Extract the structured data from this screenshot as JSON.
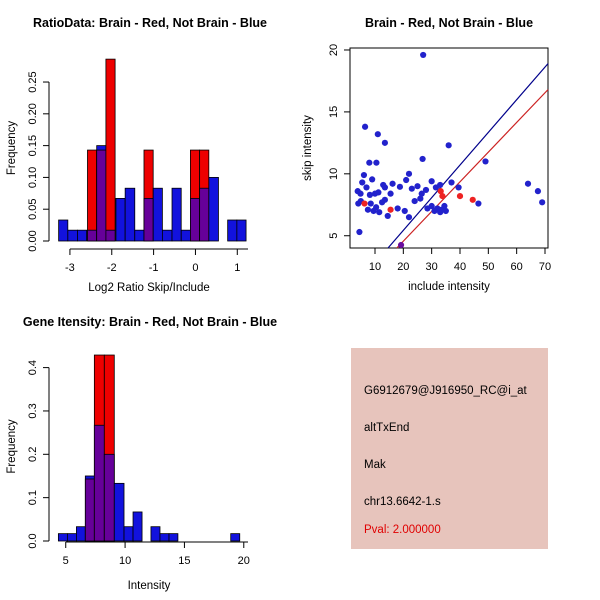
{
  "figure": {
    "background": "#ffffff",
    "description": "R graphics 2x2 panel: two overlaid histograms, one scatter plot, one gene info card"
  },
  "colors": {
    "hist_blue": "#1212DD",
    "hist_red": "#EE0000",
    "hist_overlap": "#660099",
    "point_blue": "#2222CC",
    "point_red": "#EE2222",
    "point_purple": "#6A0D9E",
    "line_blue": "#00008B",
    "line_red": "#CC2222",
    "axis": "#000000",
    "info_bg": "#E7C4BC",
    "pval_red": "#E00000"
  },
  "chart_data": [
    {
      "id": "ratio-histogram",
      "type": "bar",
      "subtype": "overlaid-histograms",
      "title": "RatioData: Brain - Red, Not Brain - Blue",
      "xlabel": "Log2 Ratio Skip/Include",
      "ylabel": "Frequency",
      "xlim": [
        -3.5,
        1.28
      ],
      "ylim": [
        0,
        0.2925
      ],
      "xticks": [
        -3,
        -2,
        -1,
        0,
        1
      ],
      "xtick_labels": [
        "-3",
        "-2",
        "-1",
        "0",
        "1"
      ],
      "yticks": [
        0,
        0.05,
        0.1,
        0.15,
        0.2,
        0.25
      ],
      "ytick_labels": [
        "0.00",
        "0.05",
        "0.10",
        "0.15",
        "0.20",
        "0.25"
      ],
      "legend_note": "Brain - Red, Not Brain - Blue, overlap - purple",
      "bars": [
        {
          "x0": -3.27,
          "x1": -3.05,
          "blue": 0.033,
          "red": 0
        },
        {
          "x0": -3.05,
          "x1": -2.82,
          "blue": 0.017,
          "red": 0
        },
        {
          "x0": -2.82,
          "x1": -2.6,
          "blue": 0.017,
          "red": 0
        },
        {
          "x0": -2.58,
          "x1": -2.36,
          "blue": 0.017,
          "red": 0.143
        },
        {
          "x0": -2.36,
          "x1": -2.14,
          "blue": 0.15,
          "red": 0.143
        },
        {
          "x0": -2.14,
          "x1": -1.92,
          "blue": 0.017,
          "red": 0.286
        },
        {
          "x0": -1.9,
          "x1": -1.68,
          "blue": 0.067,
          "red": 0
        },
        {
          "x0": -1.68,
          "x1": -1.45,
          "blue": 0.083,
          "red": 0
        },
        {
          "x0": -1.45,
          "x1": -1.23,
          "blue": 0.017,
          "red": 0
        },
        {
          "x0": -1.23,
          "x1": -1.01,
          "blue": 0.067,
          "red": 0.143
        },
        {
          "x0": -1.01,
          "x1": -0.79,
          "blue": 0.083,
          "red": 0
        },
        {
          "x0": -0.79,
          "x1": -0.56,
          "blue": 0.017,
          "red": 0
        },
        {
          "x0": -0.56,
          "x1": -0.34,
          "blue": 0.083,
          "red": 0
        },
        {
          "x0": -0.34,
          "x1": -0.12,
          "blue": 0.017,
          "red": 0
        },
        {
          "x0": -0.12,
          "x1": 0.1,
          "blue": 0.067,
          "red": 0.143
        },
        {
          "x0": 0.1,
          "x1": 0.32,
          "blue": 0.083,
          "red": 0.143
        },
        {
          "x0": 0.32,
          "x1": 0.55,
          "blue": 0.1,
          "red": 0
        },
        {
          "x0": 0.77,
          "x1": 0.99,
          "blue": 0.033,
          "red": 0
        },
        {
          "x0": 0.99,
          "x1": 1.21,
          "blue": 0.033,
          "red": 0
        }
      ]
    },
    {
      "id": "intensity-scatter",
      "type": "scatter",
      "title": "Brain - Red, Not Brain - Blue",
      "xlabel": "include intensity",
      "ylabel": "skip intensity",
      "xlim": [
        1.18,
        71.06
      ],
      "ylim": [
        4.01,
        20.16
      ],
      "xticks": [
        10,
        20,
        30,
        40,
        50,
        60,
        70
      ],
      "xtick_labels": [
        "10",
        "20",
        "30",
        "40",
        "50",
        "60",
        "70"
      ],
      "yticks": [
        5,
        10,
        15,
        20
      ],
      "ytick_labels": [
        "5",
        "10",
        "15",
        "20"
      ],
      "points_blue": [
        [
          27,
          19.6
        ],
        [
          6.5,
          13.8
        ],
        [
          11,
          13.2
        ],
        [
          13.5,
          12.5
        ],
        [
          36,
          12.3
        ],
        [
          26.8,
          11.2
        ],
        [
          49,
          11
        ],
        [
          8,
          10.9
        ],
        [
          10.5,
          10.9
        ],
        [
          6.1,
          9.9
        ],
        [
          22,
          10
        ],
        [
          9,
          9.55
        ],
        [
          16.2,
          9.2
        ],
        [
          18.8,
          8.95
        ],
        [
          12.9,
          9.1
        ],
        [
          3.9,
          8.6
        ],
        [
          4.9,
          8.4
        ],
        [
          8.2,
          8.3
        ],
        [
          10,
          8.4
        ],
        [
          11.2,
          8.5
        ],
        [
          15.5,
          8.4
        ],
        [
          21,
          9.5
        ],
        [
          23,
          8.8
        ],
        [
          25,
          9
        ],
        [
          26.5,
          8.4
        ],
        [
          28,
          8.7
        ],
        [
          30,
          9.4
        ],
        [
          31.5,
          8.9
        ],
        [
          33,
          9.1
        ],
        [
          37,
          9.3
        ],
        [
          39.5,
          8.9
        ],
        [
          5.5,
          9.3
        ],
        [
          7,
          8.9
        ],
        [
          13.5,
          8.9
        ],
        [
          5,
          7.8
        ],
        [
          4.1,
          7.6
        ],
        [
          7.5,
          7.1
        ],
        [
          8.5,
          7.6
        ],
        [
          9.5,
          7
        ],
        [
          10.4,
          7.3
        ],
        [
          11.5,
          6.9
        ],
        [
          12.5,
          7.7
        ],
        [
          13.5,
          7.9
        ],
        [
          14.5,
          6.6
        ],
        [
          18,
          7.2
        ],
        [
          20.5,
          7
        ],
        [
          22,
          6.5
        ],
        [
          24,
          7.8
        ],
        [
          26,
          8
        ],
        [
          28.5,
          7.2
        ],
        [
          30,
          7.4
        ],
        [
          31,
          7
        ],
        [
          32,
          7.2
        ],
        [
          33,
          6.9
        ],
        [
          33.5,
          7.1
        ],
        [
          34.5,
          7.4
        ],
        [
          35,
          7
        ],
        [
          46.5,
          7.6
        ],
        [
          64,
          9.2
        ],
        [
          67.5,
          8.6
        ],
        [
          69,
          7.7
        ],
        [
          4.5,
          5.3
        ]
      ],
      "points_red": [
        [
          6.3,
          7.6
        ],
        [
          15.5,
          7.1
        ],
        [
          33.2,
          8.6
        ],
        [
          33.8,
          8.2
        ],
        [
          40,
          8.2
        ],
        [
          44.5,
          7.9
        ]
      ],
      "points_purple": [
        [
          19.2,
          4.25
        ]
      ],
      "lines": [
        {
          "color_key": "line_blue",
          "x1": 14.6,
          "y1": 4.01,
          "x2": 71.06,
          "y2": 18.9
        },
        {
          "color_key": "line_red",
          "x1": 17.7,
          "y1": 4.01,
          "x2": 71.06,
          "y2": 16.8
        }
      ]
    },
    {
      "id": "gene-intensity-histogram",
      "type": "bar",
      "subtype": "overlaid-histograms",
      "title": "Gene Itensity: Brain - Red, Not Brain - Blue",
      "xlabel": "Intensity",
      "ylabel": "Frequency",
      "xlim": [
        3.59,
        20.44
      ],
      "ylim": [
        0,
        0.436
      ],
      "xticks": [
        5,
        10,
        15,
        20
      ],
      "xtick_labels": [
        "5",
        "10",
        "15",
        "20"
      ],
      "yticks": [
        0,
        0.1,
        0.2,
        0.3,
        0.4
      ],
      "ytick_labels": [
        "0.0",
        "0.1",
        "0.2",
        "0.3",
        "0.4"
      ],
      "legend_note": "Brain - Red, Not Brain - Blue, overlap - purple",
      "bars": [
        {
          "x0": 4.38,
          "x1": 5.14,
          "blue": 0.017,
          "red": 0
        },
        {
          "x0": 5.14,
          "x1": 5.9,
          "blue": 0.017,
          "red": 0
        },
        {
          "x0": 5.9,
          "x1": 6.65,
          "blue": 0.033,
          "red": 0
        },
        {
          "x0": 6.65,
          "x1": 7.41,
          "blue": 0.15,
          "red": 0.143
        },
        {
          "x0": 7.41,
          "x1": 8.25,
          "blue": 0.267,
          "red": 0.429
        },
        {
          "x0": 8.25,
          "x1": 9.09,
          "blue": 0.2,
          "red": 0.429
        },
        {
          "x0": 9.09,
          "x1": 9.91,
          "blue": 0.133,
          "red": 0
        },
        {
          "x0": 9.91,
          "x1": 10.67,
          "blue": 0.033,
          "red": 0
        },
        {
          "x0": 10.67,
          "x1": 11.43,
          "blue": 0.067,
          "red": 0
        },
        {
          "x0": 12.18,
          "x1": 12.94,
          "blue": 0.033,
          "red": 0
        },
        {
          "x0": 12.94,
          "x1": 13.7,
          "blue": 0.017,
          "red": 0
        },
        {
          "x0": 13.7,
          "x1": 14.45,
          "blue": 0.017,
          "red": 0
        },
        {
          "x0": 18.9,
          "x1": 19.66,
          "blue": 0.017,
          "red": 0
        }
      ]
    }
  ],
  "info_panel": {
    "lines": [
      "G6912679@J916950_RC@i_at",
      "altTxEnd",
      "Mak",
      "chr13.6642-1.s"
    ],
    "pval": "Pval: 2.000000"
  }
}
